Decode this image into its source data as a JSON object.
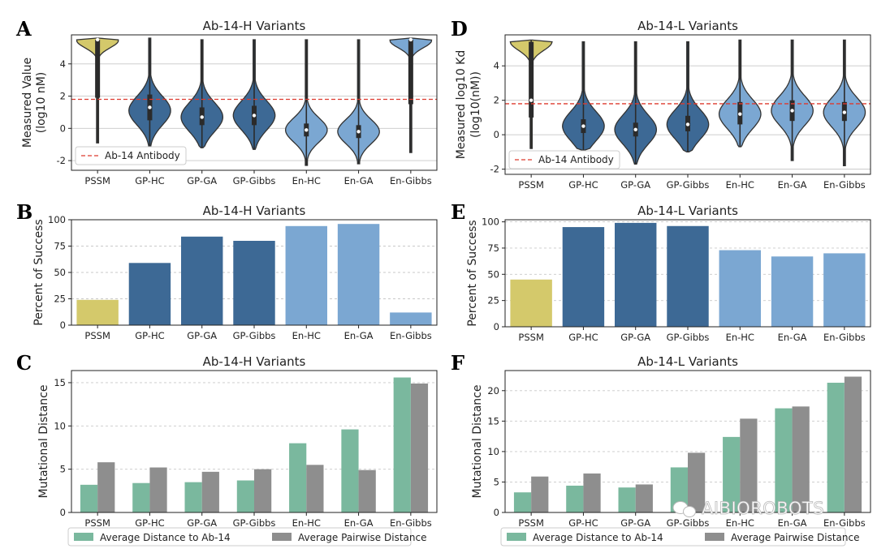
{
  "colors": {
    "pssm": "#d4c96b",
    "gp": "#3d6995",
    "en": "#7ba7d2",
    "avg_to_ab": "#7ab89e",
    "avg_pairwise": "#8e8e8e",
    "antibody_line": "#dd3a2f"
  },
  "watermark": "AIBIOROBOTS",
  "chart_data": [
    {
      "panel": "A",
      "type": "violin",
      "title": "Ab-14-H Variants",
      "ylabel_lines": [
        "Measured Value",
        "(log10 nM)"
      ],
      "categories": [
        "PSSM",
        "GP-HC",
        "GP-GA",
        "GP-Gibbs",
        "En-HC",
        "En-GA",
        "En-Gibbs"
      ],
      "groups": [
        "pssm",
        "gp",
        "gp",
        "gp",
        "en",
        "en",
        "en"
      ],
      "ylim": [
        -2.6,
        5.8
      ],
      "yticks": [
        -2,
        0,
        2,
        4
      ],
      "reference_line": {
        "value": 1.8,
        "label": "Ab-14 Antibody"
      },
      "legend_loc": "lower-left",
      "violins": [
        {
          "min": -0.9,
          "max": 5.6,
          "q1": 1.9,
          "median": 5.5,
          "q3": 5.5,
          "mode": 5.45,
          "spread": 0.45
        },
        {
          "min": -1.3,
          "max": 5.6,
          "q1": 0.5,
          "median": 1.3,
          "q3": 2.1,
          "mode": 1.1,
          "spread": 0.9
        },
        {
          "min": -1.2,
          "max": 5.5,
          "q1": 0.2,
          "median": 0.7,
          "q3": 1.3,
          "mode": 0.7,
          "spread": 0.9
        },
        {
          "min": -1.3,
          "max": 5.5,
          "q1": 0.2,
          "median": 0.8,
          "q3": 1.4,
          "mode": 0.8,
          "spread": 0.9
        },
        {
          "min": -2.3,
          "max": 5.5,
          "q1": -0.5,
          "median": -0.1,
          "q3": 0.3,
          "mode": -0.1,
          "spread": 0.75
        },
        {
          "min": -2.2,
          "max": 5.5,
          "q1": -0.6,
          "median": -0.2,
          "q3": 0.2,
          "mode": -0.2,
          "spread": 0.75
        },
        {
          "min": -1.5,
          "max": 5.6,
          "q1": 1.5,
          "median": 5.5,
          "q3": 5.5,
          "mode": 5.45,
          "spread": 0.45
        }
      ]
    },
    {
      "panel": "D",
      "type": "violin",
      "title": "Ab-14-L Variants",
      "ylabel_lines": [
        "Measured log10 Kd",
        "(log10(nM))"
      ],
      "categories": [
        "PSSM",
        "GP-HC",
        "GP-GA",
        "GP-Gibbs",
        "En-HC",
        "En-GA",
        "En-Gibbs"
      ],
      "groups": [
        "pssm",
        "gp",
        "gp",
        "gp",
        "en",
        "en",
        "en"
      ],
      "ylim": [
        -2.3,
        5.8
      ],
      "yticks": [
        -2,
        0,
        2,
        4
      ],
      "reference_line": {
        "value": 1.8,
        "label": "Ab-14 Antibody"
      },
      "legend_loc": "lower-left",
      "violins": [
        {
          "min": -0.8,
          "max": 5.5,
          "q1": 1.0,
          "median": 2.0,
          "q3": 5.4,
          "mode": 5.4,
          "spread": 0.5
        },
        {
          "min": -0.9,
          "max": 5.4,
          "q1": 0.1,
          "median": 0.5,
          "q3": 0.9,
          "mode": 0.5,
          "spread": 0.85
        },
        {
          "min": -1.7,
          "max": 5.4,
          "q1": -0.1,
          "median": 0.3,
          "q3": 0.7,
          "mode": 0.3,
          "spread": 0.85
        },
        {
          "min": -1.0,
          "max": 5.4,
          "q1": 0.2,
          "median": 0.6,
          "q3": 1.1,
          "mode": 0.6,
          "spread": 0.85
        },
        {
          "min": -0.7,
          "max": 5.5,
          "q1": 0.6,
          "median": 1.2,
          "q3": 1.9,
          "mode": 1.2,
          "spread": 0.85
        },
        {
          "min": -1.5,
          "max": 5.5,
          "q1": 0.8,
          "median": 1.4,
          "q3": 2.0,
          "mode": 1.4,
          "spread": 0.85
        },
        {
          "min": -1.8,
          "max": 5.5,
          "q1": 0.8,
          "median": 1.3,
          "q3": 1.9,
          "mode": 1.3,
          "spread": 0.85
        }
      ]
    },
    {
      "panel": "B",
      "type": "bar",
      "title": "Ab-14-H Variants",
      "ylabel": "Percent of Success",
      "categories": [
        "PSSM",
        "GP-HC",
        "GP-GA",
        "GP-Gibbs",
        "En-HC",
        "En-GA",
        "En-Gibbs"
      ],
      "groups": [
        "pssm",
        "gp",
        "gp",
        "gp",
        "en",
        "en",
        "en"
      ],
      "values": [
        24,
        59,
        84,
        80,
        94,
        96,
        12
      ],
      "ylim": [
        0,
        100
      ],
      "yticks": [
        0,
        25,
        50,
        75,
        100
      ]
    },
    {
      "panel": "E",
      "type": "bar",
      "title": "Ab-14-L Variants",
      "ylabel": "Percent of Success",
      "categories": [
        "PSSM",
        "GP-HC",
        "GP-GA",
        "GP-Gibbs",
        "En-HC",
        "En-GA",
        "En-Gibbs"
      ],
      "groups": [
        "pssm",
        "gp",
        "gp",
        "gp",
        "en",
        "en",
        "en"
      ],
      "values": [
        45,
        95,
        99,
        96,
        73,
        67,
        70
      ],
      "ylim": [
        0,
        102
      ],
      "yticks": [
        0,
        25,
        50,
        75,
        100
      ]
    },
    {
      "panel": "C",
      "type": "grouped_bar",
      "title": "Ab-14-H Variants",
      "ylabel": "Mutational Distance",
      "categories": [
        "PSSM",
        "GP-HC",
        "GP-GA",
        "GP-Gibbs",
        "En-HC",
        "En-GA",
        "En-Gibbs"
      ],
      "series": [
        {
          "name": "Average Distance to Ab-14",
          "color_key": "avg_to_ab",
          "values": [
            3.2,
            3.4,
            3.5,
            3.7,
            8.0,
            9.6,
            15.6
          ]
        },
        {
          "name": "Average Pairwise Distance",
          "color_key": "avg_pairwise",
          "values": [
            5.8,
            5.2,
            4.7,
            5.0,
            5.5,
            4.9,
            14.9
          ]
        }
      ],
      "ylim": [
        0,
        16.4
      ],
      "yticks": [
        0,
        5,
        10,
        15
      ],
      "legend_loc": "below"
    },
    {
      "panel": "F",
      "type": "grouped_bar",
      "title": "Ab-14-L Variants",
      "ylabel": "Mutational Distance",
      "categories": [
        "PSSM",
        "GP-HC",
        "GP-GA",
        "GP-Gibbs",
        "En-HC",
        "En-GA",
        "En-Gibbs"
      ],
      "series": [
        {
          "name": "Average Distance to Ab-14",
          "color_key": "avg_to_ab",
          "values": [
            3.3,
            4.4,
            4.1,
            7.4,
            12.4,
            17.1,
            21.3
          ]
        },
        {
          "name": "Average Pairwise Distance",
          "color_key": "avg_pairwise",
          "values": [
            5.9,
            6.4,
            4.6,
            9.8,
            15.4,
            17.4,
            22.3
          ]
        }
      ],
      "ylim": [
        0,
        23.3
      ],
      "yticks": [
        0,
        5,
        10,
        15,
        20
      ],
      "legend_loc": "below"
    }
  ]
}
